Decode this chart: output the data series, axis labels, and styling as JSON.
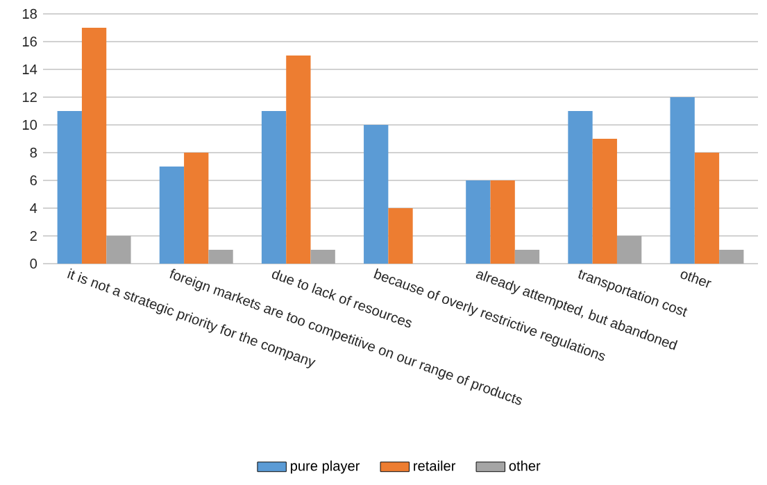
{
  "chart_data": {
    "type": "bar",
    "categories": [
      "it is not a strategic priority for the company",
      "foreign markets are too competitive on our range of products",
      "due to lack of resources",
      "because of overly restrictive regulations",
      "already attempted, but abandoned",
      "transportation cost",
      "other"
    ],
    "series": [
      {
        "name": "pure player",
        "color": "#5b9bd5",
        "values": [
          11,
          7,
          11,
          10,
          6,
          11,
          12
        ]
      },
      {
        "name": "retailer",
        "color": "#ed7d31",
        "values": [
          17,
          8,
          15,
          4,
          6,
          9,
          8
        ]
      },
      {
        "name": "other",
        "color": "#a5a5a5",
        "values": [
          2,
          1,
          1,
          0,
          1,
          2,
          1
        ]
      }
    ],
    "ylim": [
      0,
      18
    ],
    "yticks": [
      0,
      2,
      4,
      6,
      8,
      10,
      12,
      14,
      16,
      18
    ],
    "grid": "y",
    "legend": "bottom"
  }
}
